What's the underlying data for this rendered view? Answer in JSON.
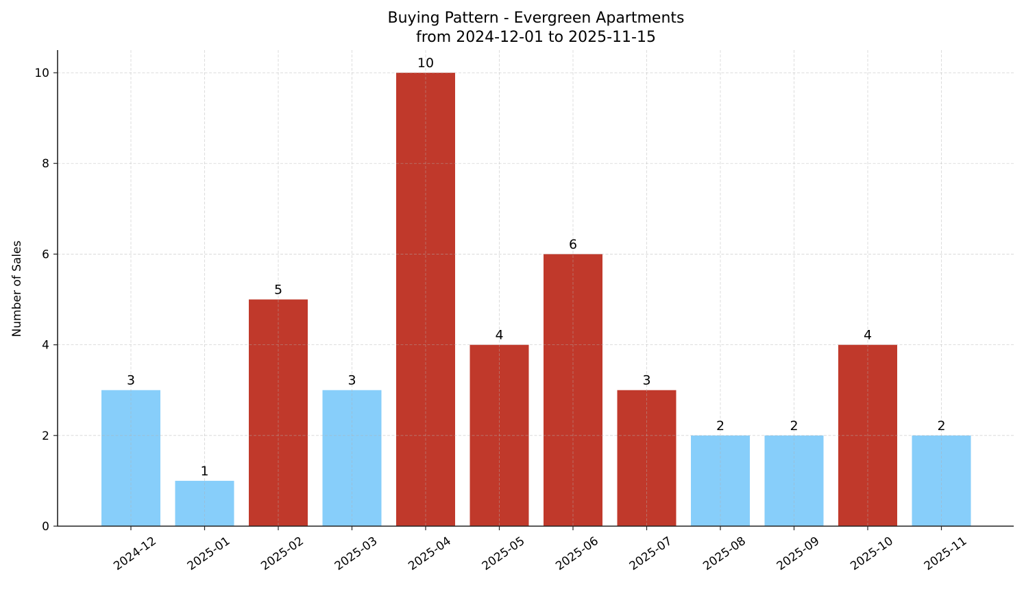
{
  "chart_data": {
    "type": "bar",
    "title": "Buying Pattern - Evergreen Apartments",
    "subtitle": "from 2024-12-01 to 2025-11-15",
    "xlabel": "",
    "ylabel": "Number of Sales",
    "categories": [
      "2024-12",
      "2025-01",
      "2025-02",
      "2025-03",
      "2025-04",
      "2025-05",
      "2025-06",
      "2025-07",
      "2025-08",
      "2025-09",
      "2025-10",
      "2025-11"
    ],
    "values": [
      3,
      1,
      5,
      3,
      10,
      4,
      6,
      3,
      2,
      2,
      4,
      2
    ],
    "bar_colors": [
      "#87CEFA",
      "#87CEFA",
      "#C0392B",
      "#87CEFA",
      "#C0392B",
      "#C0392B",
      "#C0392B",
      "#C0392B",
      "#87CEFA",
      "#87CEFA",
      "#C0392B",
      "#87CEFA"
    ],
    "yticks": [
      0,
      2,
      4,
      6,
      8,
      10
    ],
    "ylim": [
      0,
      10.5
    ],
    "grid": true,
    "data_labels": true,
    "x_tick_rotation": 35
  }
}
